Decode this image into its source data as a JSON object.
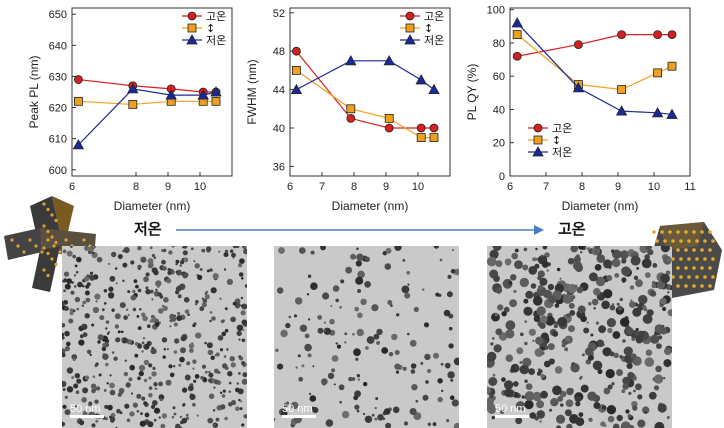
{
  "chart_data": [
    {
      "type": "line",
      "x_label": "Diameter (nm)",
      "y_label": "Peak PL (nm)",
      "xlim": [
        6,
        11
      ],
      "ylim": [
        598,
        652
      ],
      "x_ticks": [
        6,
        8,
        9,
        10
      ],
      "y_ticks": [
        600,
        610,
        620,
        630,
        640,
        650
      ],
      "legend_loc": "top-right",
      "series": [
        {
          "name": "고온",
          "marker": "circle",
          "color": "#d42020",
          "x": [
            6.2,
            7.9,
            9.1,
            10.1,
            10.5
          ],
          "y": [
            629,
            627,
            626,
            625,
            625
          ]
        },
        {
          "name": "↕",
          "marker": "square",
          "color": "#f0a020",
          "x": [
            6.2,
            7.9,
            9.1,
            10.1,
            10.5
          ],
          "y": [
            622,
            621,
            622,
            622,
            622
          ]
        },
        {
          "name": "저온",
          "marker": "triangle",
          "color": "#1a2a9a",
          "x": [
            6.2,
            7.9,
            9.1,
            10.1,
            10.5
          ],
          "y": [
            608,
            626,
            624,
            624,
            625
          ]
        }
      ]
    },
    {
      "type": "line",
      "x_label": "Diameter (nm)",
      "y_label": "FWHM (nm)",
      "xlim": [
        6,
        11
      ],
      "ylim": [
        35,
        52.5
      ],
      "x_ticks": [
        6,
        7,
        8,
        9,
        10
      ],
      "y_ticks": [
        36,
        40,
        44,
        48,
        52
      ],
      "legend_loc": "top-right",
      "series": [
        {
          "name": "고온",
          "marker": "circle",
          "color": "#d42020",
          "x": [
            6.2,
            7.9,
            9.1,
            10.1,
            10.5
          ],
          "y": [
            48,
            41,
            40,
            40,
            40
          ]
        },
        {
          "name": "↕",
          "marker": "square",
          "color": "#f0a020",
          "x": [
            6.2,
            7.9,
            9.1,
            10.1,
            10.5
          ],
          "y": [
            46,
            42,
            41,
            39,
            39
          ]
        },
        {
          "name": "저온",
          "marker": "triangle",
          "color": "#1a2a9a",
          "x": [
            6.2,
            7.9,
            9.1,
            10.1,
            10.5
          ],
          "y": [
            44,
            47,
            47,
            45,
            44
          ]
        }
      ]
    },
    {
      "type": "line",
      "x_label": "Diameter (nm)",
      "y_label": "PL QY (%)",
      "xlim": [
        6,
        11
      ],
      "ylim": [
        0,
        101
      ],
      "x_ticks": [
        6,
        7,
        8,
        9,
        10,
        11
      ],
      "y_ticks": [
        0,
        20,
        40,
        60,
        80,
        100
      ],
      "legend_loc": "center-left",
      "series": [
        {
          "name": "고온",
          "marker": "circle",
          "color": "#d42020",
          "x": [
            6.2,
            7.9,
            9.1,
            10.1,
            10.5
          ],
          "y": [
            72,
            79,
            85,
            85,
            85
          ]
        },
        {
          "name": "↕",
          "marker": "square",
          "color": "#f0a020",
          "x": [
            6.2,
            7.9,
            9.1,
            10.1,
            10.5
          ],
          "y": [
            85,
            55,
            52,
            62,
            66
          ]
        },
        {
          "name": "저온",
          "marker": "triangle",
          "color": "#1a2a9a",
          "x": [
            6.2,
            7.9,
            9.1,
            10.1,
            10.5
          ],
          "y": [
            92,
            53,
            39,
            38,
            37
          ]
        }
      ]
    }
  ],
  "process_arrow": {
    "left_label": "저온",
    "right_label": "고온",
    "color": "#4a7cc8"
  },
  "tem_images": [
    {
      "scale_label": "50 nm"
    },
    {
      "scale_label": "50 nm"
    },
    {
      "scale_label": "50 nm"
    }
  ]
}
